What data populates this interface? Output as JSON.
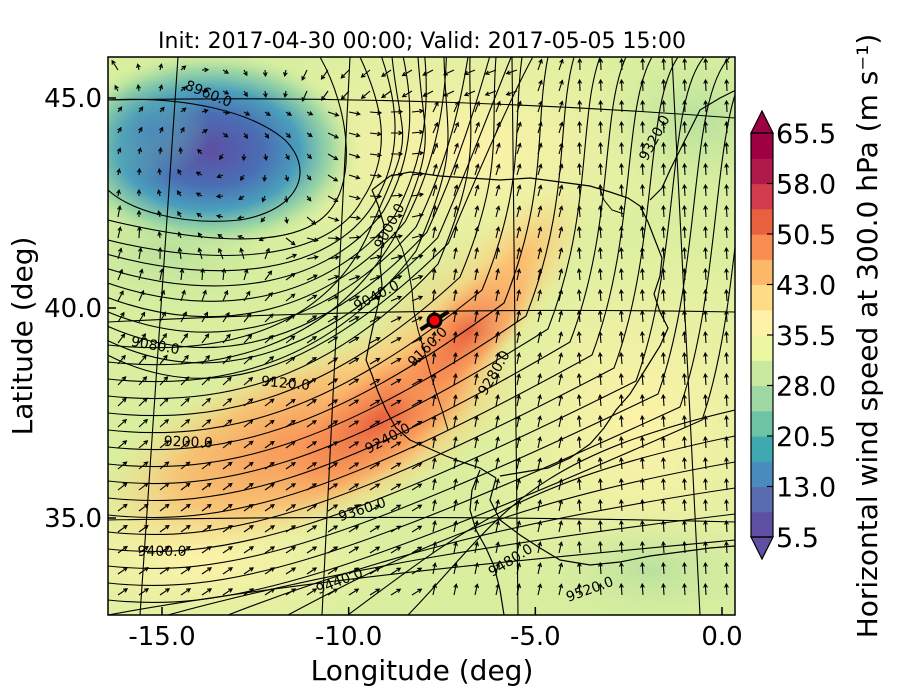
{
  "title": "Init: 2017-04-30 00:00; Valid: 2017-05-05 15:00",
  "xlabel": "Longitude (deg)",
  "ylabel": "Latitude (deg)",
  "colorbar_label": "Horizontal wind speed at 300.0 hPa (m s⁻¹)",
  "x_ticks": [
    {
      "value": -15.0,
      "label": "-15.0"
    },
    {
      "value": -10.0,
      "label": "-10.0"
    },
    {
      "value": -5.0,
      "label": "-5.0"
    },
    {
      "value": 0.0,
      "label": "0.0"
    }
  ],
  "y_ticks": [
    {
      "value": 45.0,
      "label": "45.0"
    },
    {
      "value": 40.0,
      "label": "40.0"
    },
    {
      "value": 35.0,
      "label": "35.0"
    }
  ],
  "colorbar": {
    "min": 5.5,
    "max": 65.5,
    "extend": "both",
    "colormap": "Spectral_r",
    "ticks": [
      {
        "value": 5.5,
        "label": "5.5"
      },
      {
        "value": 13.0,
        "label": "13.0"
      },
      {
        "value": 20.5,
        "label": "20.5"
      },
      {
        "value": 28.0,
        "label": "28.0"
      },
      {
        "value": 35.5,
        "label": "35.5"
      },
      {
        "value": 43.0,
        "label": "43.0"
      },
      {
        "value": 50.5,
        "label": "50.5"
      },
      {
        "value": 58.0,
        "label": "58.0"
      },
      {
        "value": 65.5,
        "label": "65.5"
      }
    ],
    "colors": [
      "#5e4fa2",
      "#5a6cb0",
      "#4a8bbd",
      "#3fa9b2",
      "#6cc4a4",
      "#9fd8a4",
      "#c9e99e",
      "#ecf7a2",
      "#fff2a8",
      "#fedb87",
      "#fdb86a",
      "#f88d52",
      "#e8613f",
      "#d33c4d",
      "#b01a4a",
      "#9e0142"
    ]
  },
  "contour_labels": [
    {
      "label": "8960.0",
      "lon": -13.8,
      "lat": 45.0,
      "rot": 22
    },
    {
      "label": "9000.0",
      "lon": -8.8,
      "lat": 41.9,
      "rot": -62
    },
    {
      "label": "9040.0",
      "lon": -9.2,
      "lat": 40.2,
      "rot": -28
    },
    {
      "label": "9080.0",
      "lon": -15.2,
      "lat": 39.0,
      "rot": 10
    },
    {
      "label": "9120.0",
      "lon": -11.7,
      "lat": 38.1,
      "rot": 5
    },
    {
      "label": "9160.0",
      "lon": -7.8,
      "lat": 39.0,
      "rot": -45
    },
    {
      "label": "9200.0",
      "lon": -14.3,
      "lat": 36.7,
      "rot": 2
    },
    {
      "label": "9240.0",
      "lon": -8.9,
      "lat": 36.8,
      "rot": -28
    },
    {
      "label": "9280.0",
      "lon": -6.0,
      "lat": 38.4,
      "rot": -60
    },
    {
      "label": "9320.0",
      "lon": -1.7,
      "lat": 44.0,
      "rot": -62
    },
    {
      "label": "9360.0",
      "lon": -9.6,
      "lat": 35.1,
      "rot": -18
    },
    {
      "label": "9400.0",
      "lon": -15.0,
      "lat": 34.1,
      "rot": 0
    },
    {
      "label": "9440.0",
      "lon": -10.2,
      "lat": 33.4,
      "rot": -22
    },
    {
      "label": "9480.0",
      "lon": -5.6,
      "lat": 33.9,
      "rot": -32
    },
    {
      "label": "9520.0",
      "lon": -3.5,
      "lat": 33.2,
      "rot": -20
    }
  ],
  "location_marker": {
    "lon": -7.7,
    "lat": 39.7,
    "color": "#ff0000"
  }
}
